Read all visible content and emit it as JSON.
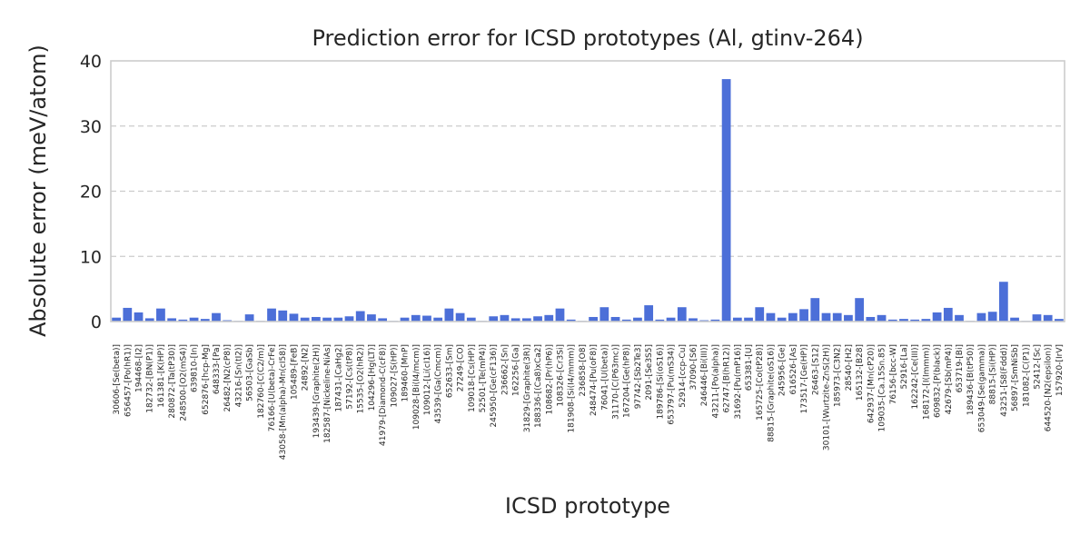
{
  "chart_data": {
    "type": "bar",
    "title": "Prediction error for ICSD prototypes (Al, gtinv-264)",
    "xlabel": "ICSD prototype",
    "ylabel": "Absolute error (meV/atom)",
    "ylim": [
      0,
      40
    ],
    "yticks": [
      0,
      10,
      20,
      30,
      40
    ],
    "grid": "y-dashed",
    "bar_color": "#4c6fd8",
    "categories": [
      "30606-[Se(beta)]",
      "656457-[Po(hR1)]",
      "194468-[I2]",
      "182732-[BN(P1)]",
      "161381-[K(HP)]",
      "280872-[Ta(tP30)]",
      "248500-[O2(mS4)]",
      "639810-[In]",
      "652876-[hcp-Mg]",
      "648333-[Pa]",
      "26482-[N2(cP8)]",
      "43216-[Sn(tI2)]",
      "56503-[GaSb]",
      "182760-[C(C2/m)]",
      "76166-[U(beta)-CrFe]",
      "43058-[Mn(alpha)-Mn(cI58)]",
      "105489-[FeB]",
      "24892-[N2]",
      "193439-[Graphite(2H)]",
      "182587-[Nickeline-NiAs]",
      "187431-[CaHg2]",
      "57192-[Cs(tP8)]",
      "15535-[O2(hR2)]",
      "104296-[Hg(LT)]",
      "41979-[Diamond-C(cF8)]",
      "109027-[S(HP)]",
      "189460-[MnP]",
      "109028-[Bi(I4/mcm)]",
      "109012-[Li(cI16)]",
      "43539-[Ga(Cmcm)]",
      "652633-[Sm]",
      "27249-[CO]",
      "109018-[Cs(HP)]",
      "52501-[Te(mP4)]",
      "245950-[Ge(cF136)]",
      "236662-[Sn]",
      "162256-[Ga]",
      "31829-[Graphite(3R)]",
      "188336-[(Ca8)xCa2]",
      "108682-[Pr(hP6)]",
      "108326-[Cr3Si]",
      "181908-[Si(I4/mmm)]",
      "236858-[O8]",
      "248474-[Pu(oF8)]",
      "76041-[U(beta)]",
      "31170-[C(P63mc)]",
      "167204-[Ge(hP8)]",
      "97742-[Sb2Te3]",
      "2091-[Se3S5]",
      "189786-[Si(oS16)]",
      "653797-[Pu(mS34)]",
      "52914-[ccp-Cu]",
      "37090-[S6]",
      "246446-[Bi(III)]",
      "43211-[Po(alpha)]",
      "62747-[B(hR12)]",
      "31692-[Pu(mP16)]",
      "653381-[U]",
      "165725-[Co(tP28)]",
      "88815-[Graphite(oS16)]",
      "245956-[Ge]",
      "616526-[As]",
      "173517-[Ge(HP)]",
      "26463-[S12]",
      "30101-[Wurtzite-ZnS(2H)]",
      "185973-[C3N2]",
      "28540-[H2]",
      "165132-[B28]",
      "642937-[Mn(cP20)]",
      "109035-[Ca.15Sn.85]",
      "76156-[bcc-W]",
      "52916-[La]",
      "162242-[Ce(III)]",
      "168172-[I(Immm)]",
      "609832-[P(black)]",
      "42679-[Sb(mP4)]",
      "653719-[Bi]",
      "189436-[B(tP50)]",
      "653049-[Se(gamma)]",
      "88815-[Si(HP)]",
      "43251-[S8(Fddd)]",
      "56897-[SmNiSb]",
      "181082-[C(P1)]",
      "52412-[Sc]",
      "644520-[N2(epsilon)]",
      "157920-[IrV]"
    ],
    "values": [
      0.6,
      2.1,
      1.4,
      0.5,
      2.0,
      0.5,
      0.3,
      0.6,
      0.4,
      1.3,
      0.2,
      0.1,
      1.1,
      0.1,
      2.0,
      1.7,
      1.2,
      0.6,
      0.7,
      0.6,
      0.6,
      0.8,
      1.6,
      1.1,
      0.5,
      0.1,
      0.6,
      1.0,
      0.9,
      0.6,
      2.0,
      1.3,
      0.6,
      0.1,
      0.8,
      1.0,
      0.5,
      0.5,
      0.8,
      1.0,
      2.0,
      0.3,
      0.1,
      0.7,
      2.2,
      0.7,
      0.3,
      0.6,
      2.5,
      0.3,
      0.6,
      2.2,
      0.5,
      0.2,
      0.3,
      37.2,
      0.6,
      0.6,
      2.2,
      1.3,
      0.6,
      1.3,
      1.9,
      3.6,
      1.3,
      1.3,
      1.0,
      3.6,
      0.7,
      1.0,
      0.3,
      0.4,
      0.3,
      0.4,
      1.4,
      2.1,
      1.0,
      0.1,
      1.3,
      1.5,
      6.1,
      0.6,
      0.1,
      1.1,
      1.0,
      0.4
    ]
  }
}
